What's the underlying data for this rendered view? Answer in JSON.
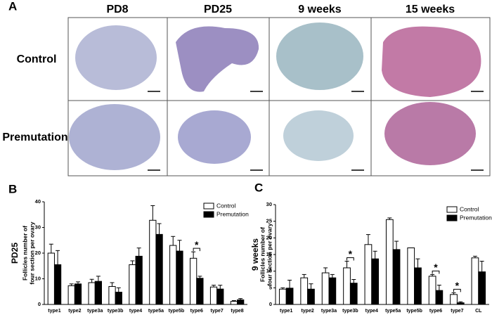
{
  "panel_a": {
    "label": "A",
    "columns": [
      "PD8",
      "PD25",
      "9 weeks",
      "15 weeks"
    ],
    "rows": [
      "Control",
      "Premutation"
    ]
  },
  "chart_data": [
    {
      "type": "bar",
      "label": "B",
      "title": "PD25",
      "ylabel": [
        "Follicles number of",
        "four section per ovary"
      ],
      "categories": [
        "type1",
        "type2",
        "type3a",
        "type3b",
        "type4",
        "type5a",
        "type5b",
        "type6",
        "type7",
        "type8"
      ],
      "series": [
        {
          "name": "Control",
          "color": "#ffffff",
          "values": [
            20,
            7.3,
            8.5,
            7,
            15.5,
            32.8,
            23,
            18,
            6.8,
            1.2
          ],
          "errors": [
            3.5,
            0.7,
            1.3,
            1.5,
            1.5,
            5.7,
            3.5,
            2.5,
            0.7,
            0.3
          ]
        },
        {
          "name": "Premutation",
          "color": "#000000",
          "values": [
            15.5,
            8,
            9,
            4.8,
            18.8,
            27.3,
            20.8,
            10.2,
            6,
            1.8
          ],
          "errors": [
            5.5,
            0.8,
            2,
            1.7,
            3.2,
            4.2,
            4.2,
            0.8,
            1.5,
            0.5
          ]
        }
      ],
      "ylim": [
        0,
        40
      ],
      "yticks": [
        0,
        10,
        20,
        30,
        40
      ],
      "annotations": [
        {
          "text": "*",
          "at": "type6"
        }
      ]
    },
    {
      "type": "bar",
      "label": "C",
      "title": "9 weeks",
      "ylabel": [
        "Follicles number of",
        "four section per ovary"
      ],
      "categories": [
        "type1",
        "type2",
        "type3a",
        "type3b",
        "type4",
        "type5a",
        "type5b",
        "type6",
        "type7",
        "CL"
      ],
      "series": [
        {
          "name": "Control",
          "color": "#ffffff",
          "values": [
            4.6,
            8,
            9.5,
            11,
            18,
            25.5,
            17,
            8.5,
            3,
            14
          ],
          "errors": [
            0.4,
            1,
            1.5,
            2,
            3,
            0.5,
            0,
            0.5,
            0.5,
            0.5
          ]
        },
        {
          "name": "Premutation",
          "color": "#000000",
          "values": [
            4.9,
            4.6,
            8,
            6.4,
            13.7,
            16.5,
            11,
            4.2,
            0.5,
            9.8
          ],
          "errors": [
            2.4,
            1.6,
            1,
            1.1,
            2.3,
            2.5,
            2.7,
            1.6,
            0.3,
            3.2
          ]
        }
      ],
      "ylim": [
        0,
        30
      ],
      "yticks": [
        0,
        5,
        10,
        15,
        20,
        25,
        30
      ],
      "annotations": [
        {
          "text": "*",
          "at": "type3b"
        },
        {
          "text": "*",
          "at": "type6"
        },
        {
          "text": "*",
          "at": "type7"
        }
      ]
    }
  ]
}
